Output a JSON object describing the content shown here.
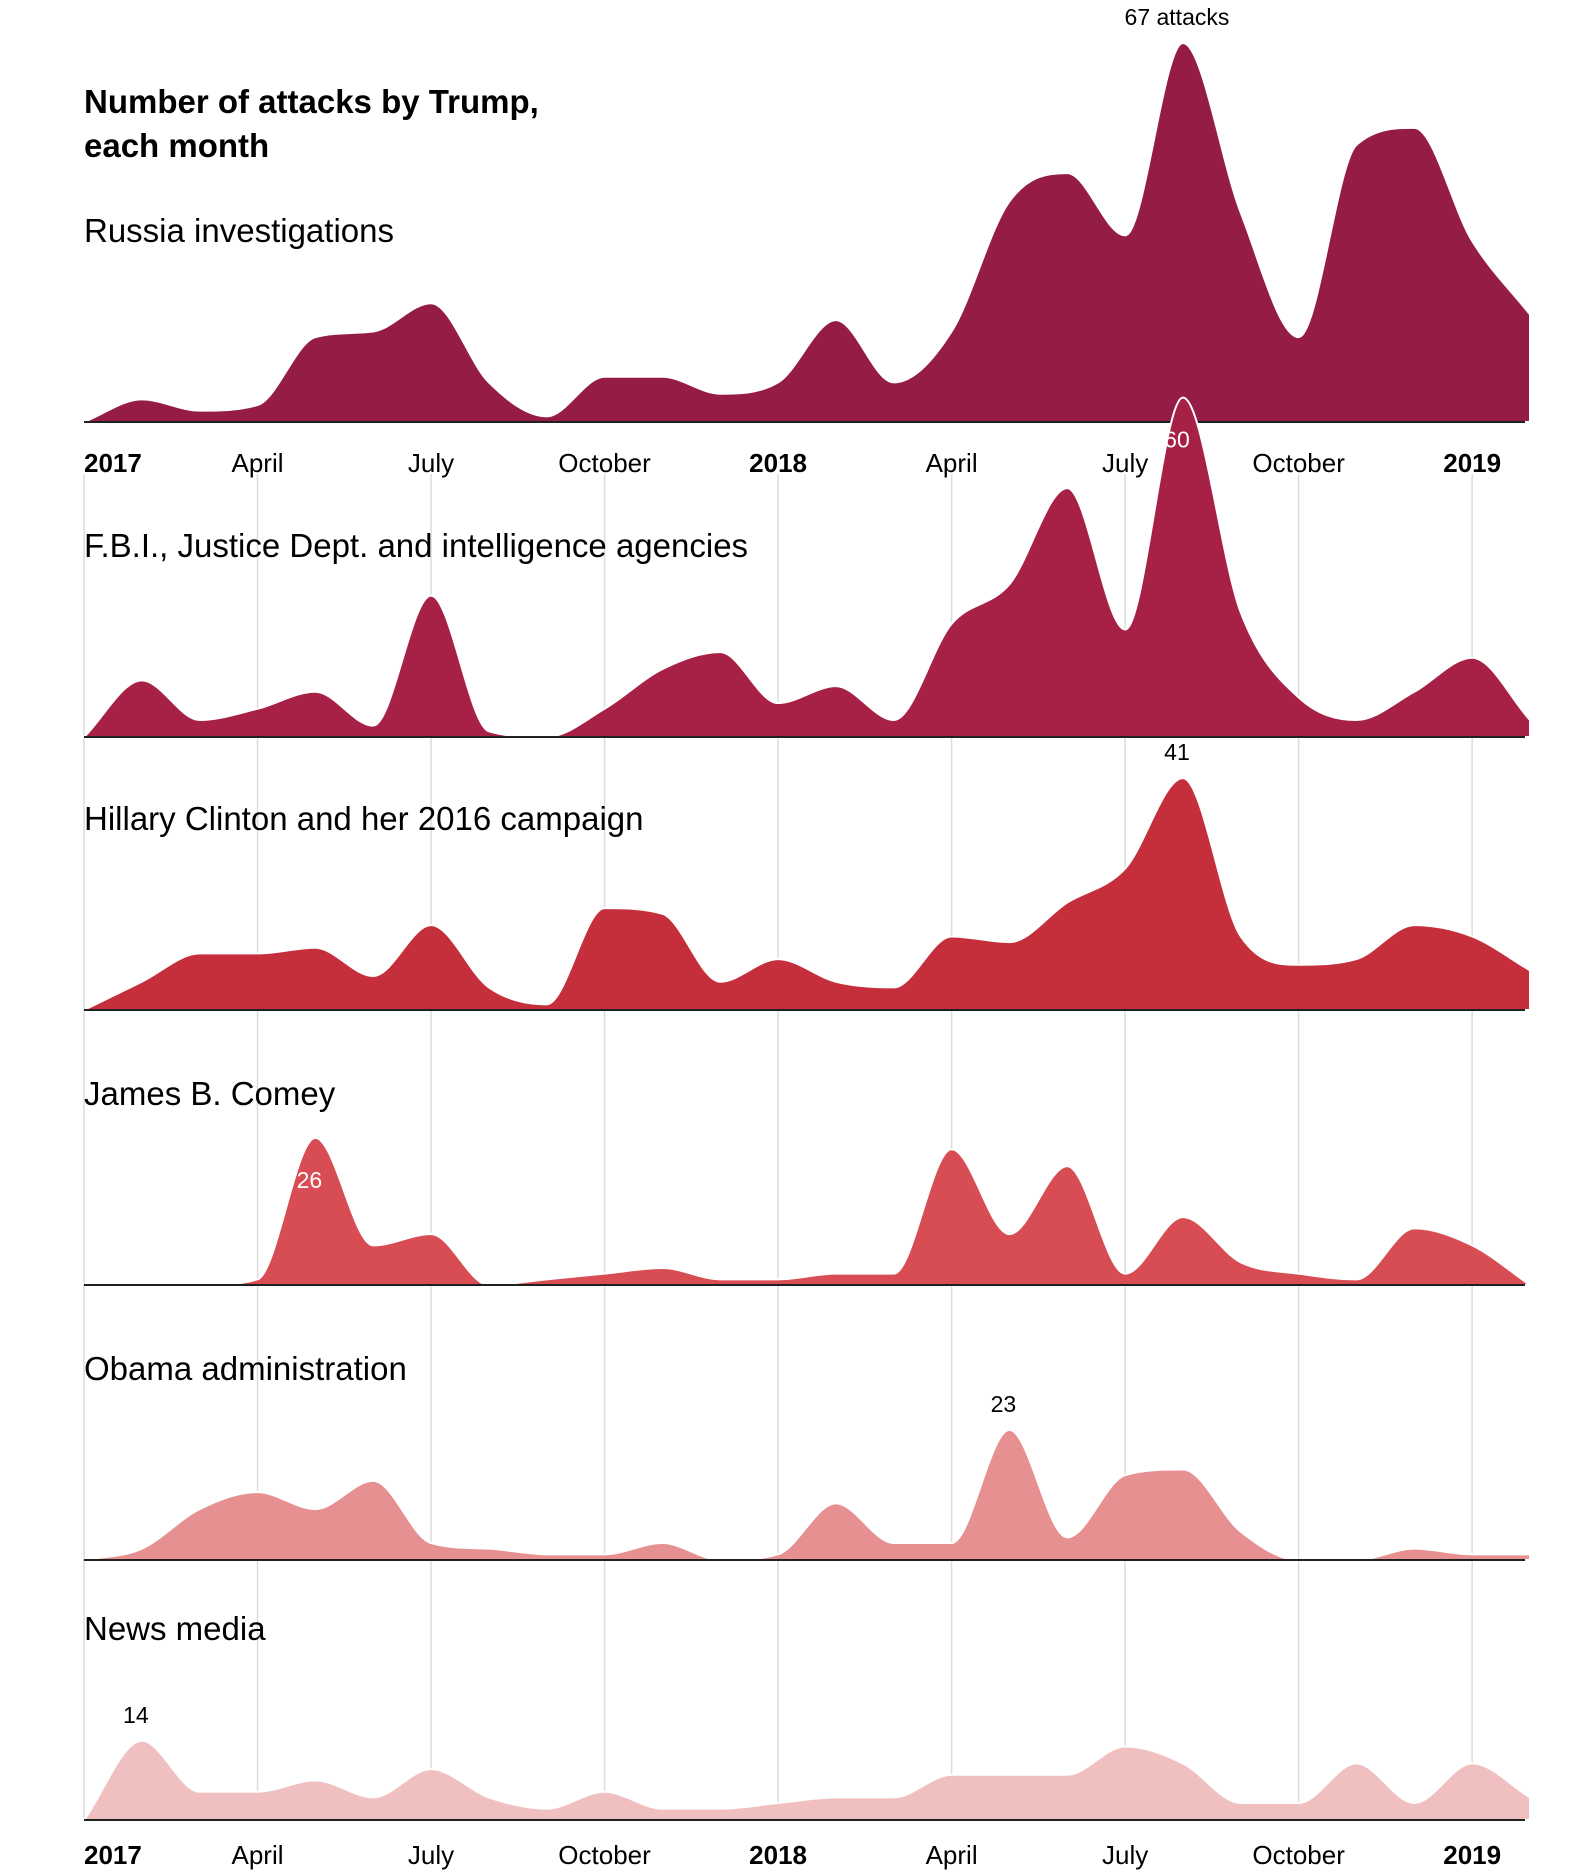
{
  "chart_data": {
    "type": "ridgeline",
    "title": "Number of attacks by Trump, each month",
    "x": [
      "2017-01",
      "2017-02",
      "2017-03",
      "2017-04",
      "2017-05",
      "2017-06",
      "2017-07",
      "2017-08",
      "2017-09",
      "2017-10",
      "2017-11",
      "2017-12",
      "2018-01",
      "2018-02",
      "2018-03",
      "2018-04",
      "2018-05",
      "2018-06",
      "2018-07",
      "2018-08",
      "2018-09",
      "2018-10",
      "2018-11",
      "2018-12",
      "2019-01",
      "2019-02"
    ],
    "xlim": [
      "2017-01",
      "2019-02"
    ],
    "xticks": [
      {
        "value": "2017-01",
        "label": "2017"
      },
      {
        "value": "2017-04",
        "label": "April"
      },
      {
        "value": "2017-07",
        "label": "July"
      },
      {
        "value": "2017-10",
        "label": "October"
      },
      {
        "value": "2018-01",
        "label": "2018"
      },
      {
        "value": "2018-04",
        "label": "April"
      },
      {
        "value": "2018-07",
        "label": "July"
      },
      {
        "value": "2018-10",
        "label": "October"
      },
      {
        "value": "2019-01",
        "label": "2019"
      }
    ],
    "ylim": [
      0,
      67
    ],
    "grid": true,
    "series": [
      {
        "name": "Russia investigations",
        "color": "#941c47",
        "label_color": "#000000",
        "values": [
          0,
          4,
          2,
          3,
          15,
          16,
          21,
          7,
          1,
          8,
          8,
          5,
          7,
          18,
          7,
          16,
          39,
          44,
          33,
          67,
          37,
          15,
          49,
          52,
          32,
          19
        ],
        "value_labels": [
          null,
          null,
          null,
          null,
          null,
          null,
          null,
          null,
          null,
          null,
          null,
          null,
          null,
          null,
          null,
          null,
          null,
          null,
          null,
          "67 attacks",
          null,
          null,
          null,
          null,
          null,
          null
        ]
      },
      {
        "name": "F.B.I., Justice Dept. and intelligence agencies",
        "color": "#a62145",
        "label_color": "#ffffff",
        "values": [
          0,
          10,
          3,
          5,
          8,
          2,
          25,
          1,
          0,
          5,
          12,
          15,
          6,
          9,
          3,
          20,
          27,
          44,
          19,
          60,
          22,
          7,
          3,
          8,
          14,
          3
        ],
        "value_labels": [
          null,
          null,
          null,
          null,
          null,
          null,
          null,
          null,
          null,
          null,
          null,
          null,
          null,
          null,
          null,
          null,
          null,
          null,
          null,
          "60",
          null,
          null,
          null,
          null,
          null,
          null
        ]
      },
      {
        "name": "Hillary Clinton and her 2016 campaign",
        "color": "#c52e3b",
        "label_color": "#000000",
        "values": [
          0,
          5,
          10,
          10,
          11,
          6,
          15,
          4,
          1,
          18,
          17,
          5,
          9,
          5,
          4,
          13,
          12,
          19,
          25,
          41,
          13,
          8,
          9,
          15,
          13,
          7
        ],
        "value_labels": [
          null,
          null,
          null,
          null,
          null,
          null,
          null,
          null,
          null,
          null,
          null,
          null,
          null,
          null,
          null,
          null,
          null,
          null,
          null,
          "41",
          null,
          null,
          null,
          null,
          null,
          null
        ]
      },
      {
        "name": "James B. Comey",
        "color": "#d84c54",
        "label_color": "#ffffff",
        "values": [
          0,
          0,
          0,
          1,
          26,
          7,
          9,
          0,
          1,
          2,
          3,
          1,
          1,
          2,
          2,
          24,
          9,
          21,
          2,
          12,
          4,
          2,
          1,
          10,
          7,
          0
        ],
        "value_labels": [
          null,
          null,
          null,
          null,
          "26",
          null,
          null,
          null,
          null,
          null,
          null,
          null,
          null,
          null,
          null,
          null,
          null,
          null,
          null,
          null,
          null,
          null,
          null,
          null,
          null,
          null
        ]
      },
      {
        "name": "Obama administration",
        "color": "#e69092",
        "label_color": "#000000",
        "values": [
          0,
          2,
          9,
          12,
          9,
          14,
          3,
          2,
          1,
          1,
          3,
          0,
          1,
          10,
          3,
          3,
          23,
          4,
          15,
          16,
          5,
          0,
          0,
          2,
          1,
          1
        ],
        "value_labels": [
          null,
          null,
          null,
          null,
          null,
          null,
          null,
          null,
          null,
          null,
          null,
          null,
          null,
          null,
          null,
          null,
          "23",
          null,
          null,
          null,
          null,
          null,
          null,
          null,
          null,
          null
        ]
      },
      {
        "name": "News media",
        "color": "#f0bfc0",
        "label_color": "#000000",
        "values": [
          0,
          14,
          5,
          5,
          7,
          4,
          9,
          4,
          2,
          5,
          2,
          2,
          3,
          4,
          4,
          8,
          8,
          8,
          13,
          10,
          3,
          3,
          10,
          3,
          10,
          4
        ],
        "value_labels": [
          null,
          "14",
          null,
          null,
          null,
          null,
          null,
          null,
          null,
          null,
          null,
          null,
          null,
          null,
          null,
          null,
          null,
          null,
          null,
          null,
          null,
          null,
          null,
          null,
          null,
          null
        ]
      }
    ]
  }
}
